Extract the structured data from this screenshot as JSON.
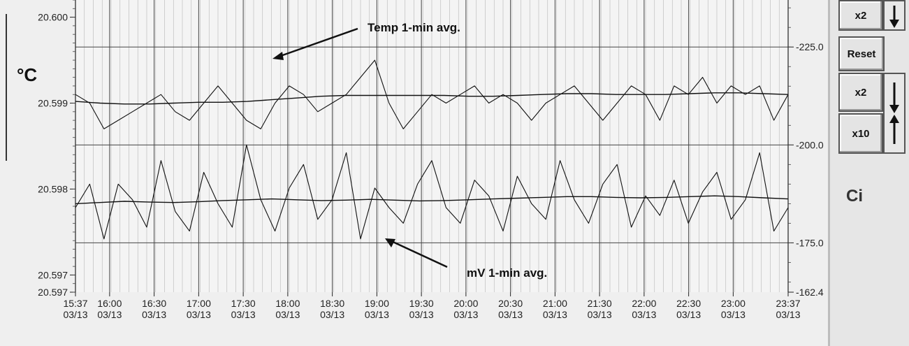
{
  "unit_label": "°C",
  "right_panel": {
    "x2_top": "x2",
    "reset": "Reset",
    "x2_mid": "x2",
    "x10": "x10",
    "ci_label": "Ci"
  },
  "annotations": {
    "temp": "Temp 1-min avg.",
    "mv": "mV 1-min avg."
  },
  "chart_data": {
    "type": "line",
    "title": "",
    "x_ticks": [
      {
        "time": "15:37",
        "date": "03/13",
        "minute": 0
      },
      {
        "time": "16:00",
        "date": "03/13",
        "minute": 23
      },
      {
        "time": "16:30",
        "date": "03/13",
        "minute": 53
      },
      {
        "time": "17:00",
        "date": "03/13",
        "minute": 83
      },
      {
        "time": "17:30",
        "date": "03/13",
        "minute": 113
      },
      {
        "time": "18:00",
        "date": "03/13",
        "minute": 143
      },
      {
        "time": "18:30",
        "date": "03/13",
        "minute": 173
      },
      {
        "time": "19:00",
        "date": "03/13",
        "minute": 203
      },
      {
        "time": "19:30",
        "date": "03/13",
        "minute": 233
      },
      {
        "time": "20:00",
        "date": "03/13",
        "minute": 263
      },
      {
        "time": "20:30",
        "date": "03/13",
        "minute": 293
      },
      {
        "time": "21:00",
        "date": "03/13",
        "minute": 323
      },
      {
        "time": "21:30",
        "date": "03/13",
        "minute": 353
      },
      {
        "time": "22:00",
        "date": "03/13",
        "minute": 383
      },
      {
        "time": "22:30",
        "date": "03/13",
        "minute": 413
      },
      {
        "time": "23:00",
        "date": "03/13",
        "minute": 443
      },
      {
        "time": "23:37",
        "date": "03/13",
        "minute": 480
      }
    ],
    "x_range": [
      "15:37",
      "23:37"
    ],
    "y_left": {
      "unit": "°C",
      "ticks": [
        "20.597",
        "20.597",
        "20.598",
        "20.599",
        "20.600"
      ],
      "tick_values": [
        20.5968,
        20.597,
        20.598,
        20.599,
        20.6
      ],
      "range": [
        20.5968,
        20.6002
      ]
    },
    "y_right": {
      "ticks": [
        "-162.4",
        "-175.0",
        "-200.0",
        "-225.0"
      ],
      "tick_values": [
        -162.4,
        -175.0,
        -200.0,
        -225.0
      ],
      "range": [
        -162.4,
        -237.0
      ]
    },
    "grid": true,
    "series": [
      {
        "axis": "left",
        "values": [
          20.5991,
          20.599,
          20.5987,
          20.5988,
          20.5989,
          20.599,
          20.5991,
          20.5989,
          20.5988,
          20.599,
          20.5992,
          20.599,
          20.5988,
          20.5987,
          20.599,
          20.5992,
          20.5991,
          20.5989,
          20.599,
          20.5991,
          20.5993,
          20.5995,
          20.599,
          20.5987,
          20.5989,
          20.5991,
          20.599,
          20.5991,
          20.5992,
          20.599,
          20.5991,
          20.599,
          20.5988,
          20.599,
          20.5991,
          20.5992,
          20.599,
          20.5988,
          20.599,
          20.5992,
          20.5991,
          20.5988,
          20.5992,
          20.5991,
          20.5993,
          20.599,
          20.5992,
          20.5991,
          20.5992,
          20.5988,
          20.5991
        ]
      },
      {
        "axis": "left",
        "values": [
          20.59902,
          20.599,
          20.59899,
          20.59899,
          20.599,
          20.59901,
          20.59901,
          20.59902,
          20.59904,
          20.59906,
          20.59908,
          20.59909,
          20.59909,
          20.59909,
          20.59909,
          20.59909,
          20.59908,
          20.59908,
          20.59909,
          20.5991,
          20.59911,
          20.59911,
          20.5991,
          20.5991,
          20.5991,
          20.59911,
          20.59912,
          20.59912,
          20.59911,
          20.5991
        ]
      },
      {
        "axis": "right",
        "values": [
          -184,
          -190,
          -176,
          -190,
          -186,
          -179,
          -196,
          -183,
          -178,
          -193,
          -185,
          -179,
          -200,
          -186,
          -178,
          -189,
          -195,
          -181,
          -186,
          -198,
          -176,
          -189,
          -184,
          -180,
          -190,
          -196,
          -184,
          -180,
          -191,
          -187,
          -178,
          -192,
          -185,
          -181,
          -196,
          -186,
          -180,
          -190,
          -195,
          -179,
          -187,
          -182,
          -191,
          -180,
          -188,
          -193,
          -181,
          -186,
          -198,
          -178,
          -184
        ]
      },
      {
        "axis": "right",
        "values": [
          -185.0,
          -185.3,
          -185.6,
          -185.4,
          -185.3,
          -185.5,
          -185.8,
          -186.0,
          -186.2,
          -186.0,
          -185.8,
          -185.9,
          -186.1,
          -185.9,
          -185.7,
          -185.8,
          -186.0,
          -186.2,
          -186.4,
          -186.6,
          -186.8,
          -186.8,
          -186.6,
          -186.5,
          -186.6,
          -186.8,
          -187.0,
          -186.8,
          -186.5,
          -186.2
        ]
      }
    ]
  }
}
